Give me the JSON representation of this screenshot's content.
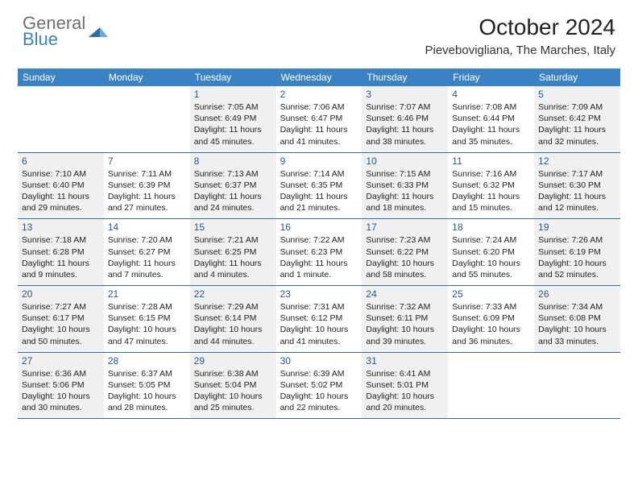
{
  "logo": {
    "text1": "General",
    "text2": "Blue"
  },
  "title": "October 2024",
  "location": "Pievebovigliana, The Marches, Italy",
  "colors": {
    "header_bg": "#3b82c4",
    "header_text": "#ffffff",
    "border": "#3b6a9a",
    "shaded_bg": "#f0f0f0",
    "daynum": "#245a8d",
    "logo_gray": "#6f6f6f",
    "logo_blue": "#3b82c4"
  },
  "calendar": {
    "type": "table",
    "weekdays": [
      "Sunday",
      "Monday",
      "Tuesday",
      "Wednesday",
      "Thursday",
      "Friday",
      "Saturday"
    ],
    "leading_blanks": 2,
    "days": [
      {
        "n": 1,
        "shaded": true,
        "sunrise": "7:05 AM",
        "sunset": "6:49 PM",
        "daylight": "11 hours and 45 minutes."
      },
      {
        "n": 2,
        "shaded": false,
        "sunrise": "7:06 AM",
        "sunset": "6:47 PM",
        "daylight": "11 hours and 41 minutes."
      },
      {
        "n": 3,
        "shaded": true,
        "sunrise": "7:07 AM",
        "sunset": "6:46 PM",
        "daylight": "11 hours and 38 minutes."
      },
      {
        "n": 4,
        "shaded": false,
        "sunrise": "7:08 AM",
        "sunset": "6:44 PM",
        "daylight": "11 hours and 35 minutes."
      },
      {
        "n": 5,
        "shaded": true,
        "sunrise": "7:09 AM",
        "sunset": "6:42 PM",
        "daylight": "11 hours and 32 minutes."
      },
      {
        "n": 6,
        "shaded": true,
        "sunrise": "7:10 AM",
        "sunset": "6:40 PM",
        "daylight": "11 hours and 29 minutes."
      },
      {
        "n": 7,
        "shaded": false,
        "sunrise": "7:11 AM",
        "sunset": "6:39 PM",
        "daylight": "11 hours and 27 minutes."
      },
      {
        "n": 8,
        "shaded": true,
        "sunrise": "7:13 AM",
        "sunset": "6:37 PM",
        "daylight": "11 hours and 24 minutes."
      },
      {
        "n": 9,
        "shaded": false,
        "sunrise": "7:14 AM",
        "sunset": "6:35 PM",
        "daylight": "11 hours and 21 minutes."
      },
      {
        "n": 10,
        "shaded": true,
        "sunrise": "7:15 AM",
        "sunset": "6:33 PM",
        "daylight": "11 hours and 18 minutes."
      },
      {
        "n": 11,
        "shaded": false,
        "sunrise": "7:16 AM",
        "sunset": "6:32 PM",
        "daylight": "11 hours and 15 minutes."
      },
      {
        "n": 12,
        "shaded": true,
        "sunrise": "7:17 AM",
        "sunset": "6:30 PM",
        "daylight": "11 hours and 12 minutes."
      },
      {
        "n": 13,
        "shaded": true,
        "sunrise": "7:18 AM",
        "sunset": "6:28 PM",
        "daylight": "11 hours and 9 minutes."
      },
      {
        "n": 14,
        "shaded": false,
        "sunrise": "7:20 AM",
        "sunset": "6:27 PM",
        "daylight": "11 hours and 7 minutes."
      },
      {
        "n": 15,
        "shaded": true,
        "sunrise": "7:21 AM",
        "sunset": "6:25 PM",
        "daylight": "11 hours and 4 minutes."
      },
      {
        "n": 16,
        "shaded": false,
        "sunrise": "7:22 AM",
        "sunset": "6:23 PM",
        "daylight": "11 hours and 1 minute."
      },
      {
        "n": 17,
        "shaded": true,
        "sunrise": "7:23 AM",
        "sunset": "6:22 PM",
        "daylight": "10 hours and 58 minutes."
      },
      {
        "n": 18,
        "shaded": false,
        "sunrise": "7:24 AM",
        "sunset": "6:20 PM",
        "daylight": "10 hours and 55 minutes."
      },
      {
        "n": 19,
        "shaded": true,
        "sunrise": "7:26 AM",
        "sunset": "6:19 PM",
        "daylight": "10 hours and 52 minutes."
      },
      {
        "n": 20,
        "shaded": true,
        "sunrise": "7:27 AM",
        "sunset": "6:17 PM",
        "daylight": "10 hours and 50 minutes."
      },
      {
        "n": 21,
        "shaded": false,
        "sunrise": "7:28 AM",
        "sunset": "6:15 PM",
        "daylight": "10 hours and 47 minutes."
      },
      {
        "n": 22,
        "shaded": true,
        "sunrise": "7:29 AM",
        "sunset": "6:14 PM",
        "daylight": "10 hours and 44 minutes."
      },
      {
        "n": 23,
        "shaded": false,
        "sunrise": "7:31 AM",
        "sunset": "6:12 PM",
        "daylight": "10 hours and 41 minutes."
      },
      {
        "n": 24,
        "shaded": true,
        "sunrise": "7:32 AM",
        "sunset": "6:11 PM",
        "daylight": "10 hours and 39 minutes."
      },
      {
        "n": 25,
        "shaded": false,
        "sunrise": "7:33 AM",
        "sunset": "6:09 PM",
        "daylight": "10 hours and 36 minutes."
      },
      {
        "n": 26,
        "shaded": true,
        "sunrise": "7:34 AM",
        "sunset": "6:08 PM",
        "daylight": "10 hours and 33 minutes."
      },
      {
        "n": 27,
        "shaded": true,
        "sunrise": "6:36 AM",
        "sunset": "5:06 PM",
        "daylight": "10 hours and 30 minutes."
      },
      {
        "n": 28,
        "shaded": false,
        "sunrise": "6:37 AM",
        "sunset": "5:05 PM",
        "daylight": "10 hours and 28 minutes."
      },
      {
        "n": 29,
        "shaded": true,
        "sunrise": "6:38 AM",
        "sunset": "5:04 PM",
        "daylight": "10 hours and 25 minutes."
      },
      {
        "n": 30,
        "shaded": false,
        "sunrise": "6:39 AM",
        "sunset": "5:02 PM",
        "daylight": "10 hours and 22 minutes."
      },
      {
        "n": 31,
        "shaded": true,
        "sunrise": "6:41 AM",
        "sunset": "5:01 PM",
        "daylight": "10 hours and 20 minutes."
      }
    ],
    "labels": {
      "sunrise": "Sunrise:",
      "sunset": "Sunset:",
      "daylight": "Daylight:"
    }
  }
}
